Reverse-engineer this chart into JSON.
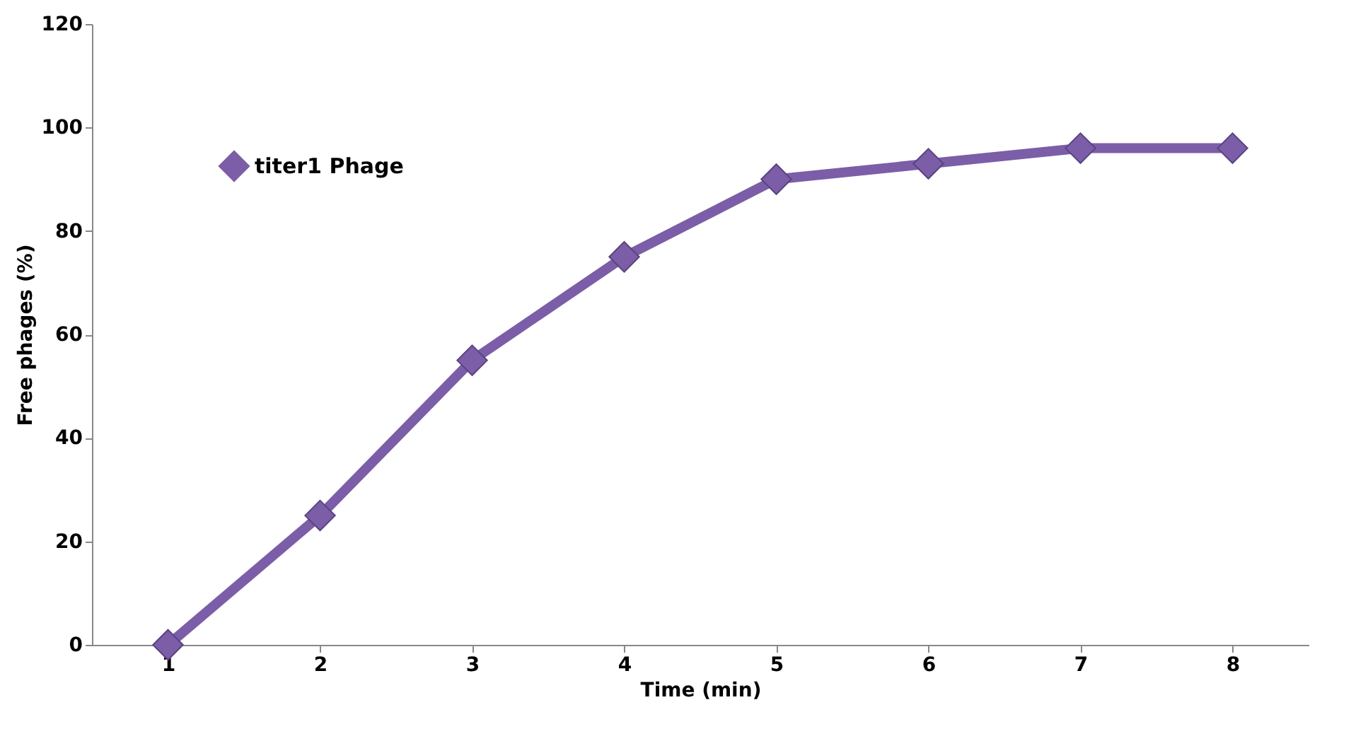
{
  "chart_data": {
    "type": "line",
    "xlabel": "Time (min)",
    "ylabel": "Free phages (%)",
    "categories": [
      "1",
      "2",
      "3",
      "4",
      "5",
      "6",
      "7",
      "8"
    ],
    "series": [
      {
        "name": "titer1 Phage",
        "color": "#7b5ea7",
        "values": [
          0,
          25,
          55,
          75,
          90,
          93,
          96,
          96
        ]
      }
    ],
    "ylim": [
      0,
      120
    ],
    "yticks": [
      0,
      20,
      40,
      60,
      80,
      100,
      120
    ],
    "grid": false,
    "legend": "top left",
    "marker": "diamond",
    "line_style": "solid"
  }
}
